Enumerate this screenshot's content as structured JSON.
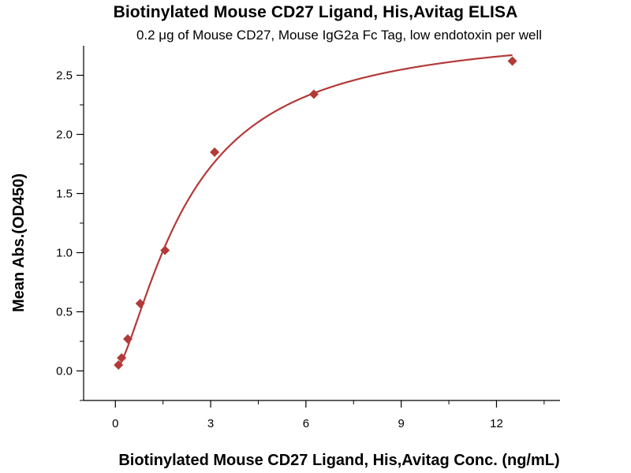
{
  "chart_data": {
    "type": "scatter",
    "title": "Biotinylated Mouse CD27 Ligand, His,Avitag ELISA",
    "subtitle": "0.2 μg of Mouse CD27, Mouse IgG2a Fc Tag, low endotoxin per well",
    "xlabel": "Biotinylated Mouse CD27 Ligand, His,Avitag Conc. (ng/mL)",
    "ylabel": "Mean Abs.(OD450)",
    "xlim": [
      -1,
      14
    ],
    "ylim": [
      -0.25,
      2.75
    ],
    "xticks": [
      0,
      3,
      6,
      9,
      12
    ],
    "yticks": [
      0.0,
      0.5,
      1.0,
      1.5,
      2.0,
      2.5
    ],
    "ytick_labels": [
      "0.0",
      "0.5",
      "1.0",
      "1.5",
      "2.0",
      "2.5"
    ],
    "marker_color": "#b23a38",
    "line_color": "#b23a38",
    "series": [
      {
        "name": "Mean Abs.(OD450)",
        "x": [
          0.098,
          0.195,
          0.391,
          0.781,
          1.5625,
          3.125,
          6.25,
          12.5
        ],
        "y": [
          0.05,
          0.11,
          0.27,
          0.57,
          1.02,
          1.85,
          2.34,
          2.62
        ]
      }
    ],
    "fit": {
      "type": "4PL",
      "bottom": 0.0,
      "top": 2.9,
      "ec50": 2.3,
      "hill": 1.45
    }
  }
}
